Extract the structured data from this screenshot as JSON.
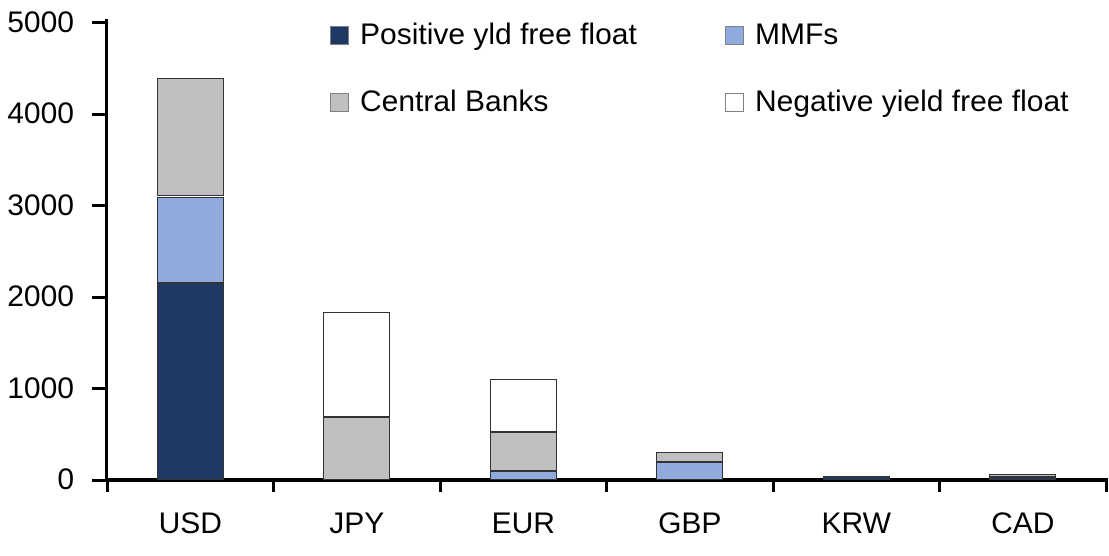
{
  "chart_data": {
    "type": "bar",
    "stacked": true,
    "title": "",
    "xlabel": "",
    "ylabel": "",
    "categories": [
      "USD",
      "JPY",
      "EUR",
      "GBP",
      "KRW",
      "CAD"
    ],
    "series": [
      {
        "name": "Positive yld free float",
        "color": "#1F3864",
        "values": [
          2150,
          0,
          0,
          0,
          40,
          30
        ]
      },
      {
        "name": "MMFs",
        "color": "#8FAADC",
        "values": [
          950,
          0,
          100,
          200,
          0,
          0
        ]
      },
      {
        "name": "Central Banks",
        "color": "#BFBFBF",
        "values": [
          1300,
          690,
          420,
          110,
          0,
          40
        ]
      },
      {
        "name": "Negative yield free float",
        "color": "#FFFFFF",
        "values": [
          0,
          1150,
          580,
          0,
          0,
          0
        ]
      }
    ],
    "totals": [
      4400,
      1840,
      1100,
      310,
      40,
      70
    ],
    "ylim": [
      0,
      5000
    ],
    "yticks": [
      0,
      1000,
      2000,
      3000,
      4000,
      5000
    ],
    "ytick_labels": [
      "0",
      "1000",
      "2000",
      "3000",
      "4000",
      "5000"
    ],
    "grid": false,
    "legend_position": "top",
    "axis_color": "#000000",
    "background_color": "#FFFFFF"
  }
}
